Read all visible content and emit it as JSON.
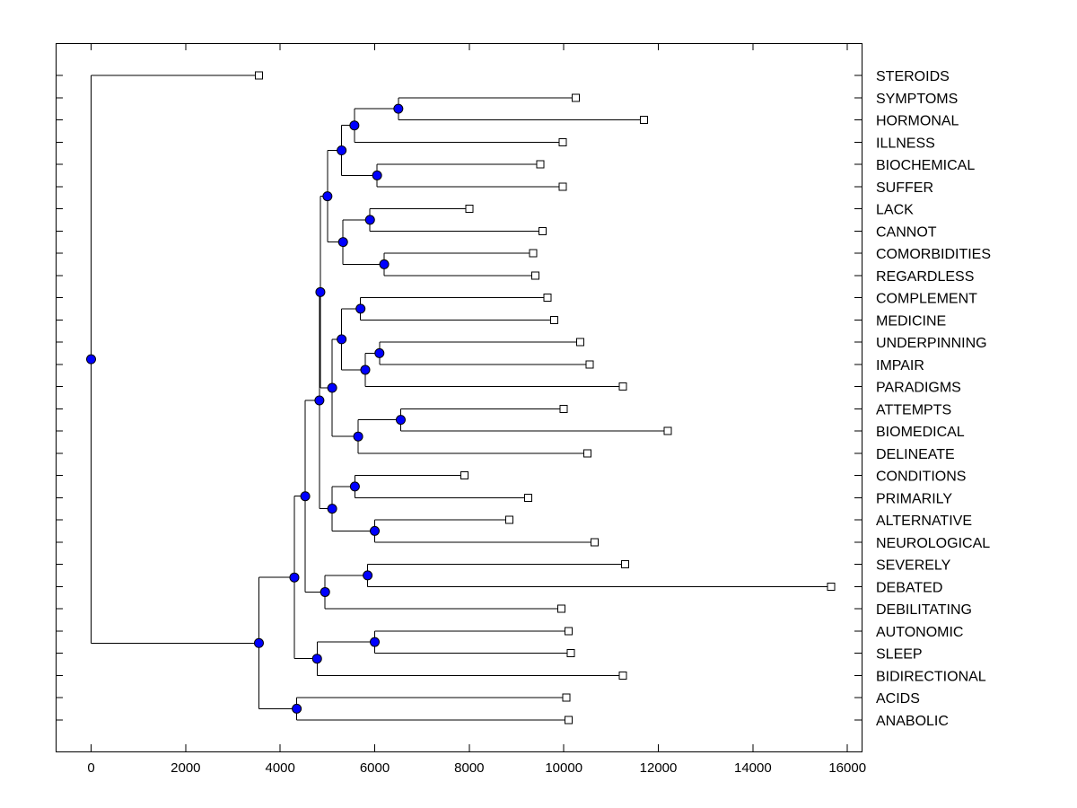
{
  "chart_data": {
    "type": "dendrogram",
    "title": "",
    "xlabel": "",
    "ylabel": "",
    "xlim": [
      -750,
      16300
    ],
    "xticks": [
      0,
      2000,
      4000,
      6000,
      8000,
      10000,
      12000,
      14000,
      16000
    ],
    "xtick_labels": [
      "0",
      "2000",
      "4000",
      "6000",
      "8000",
      "10000",
      "12000",
      "14000",
      "16000"
    ],
    "node_color": "#0000ff",
    "leaves": [
      {
        "label": "STEROIDS",
        "value": 3550
      },
      {
        "label": "SYMPTOMS",
        "value": 10250
      },
      {
        "label": "HORMONAL",
        "value": 11700
      },
      {
        "label": "ILLNESS",
        "value": 9980
      },
      {
        "label": "BIOCHEMICAL",
        "value": 9500
      },
      {
        "label": "SUFFER",
        "value": 9980
      },
      {
        "label": "LACK",
        "value": 8000
      },
      {
        "label": "CANNOT",
        "value": 9550
      },
      {
        "label": "COMORBIDITIES",
        "value": 9350
      },
      {
        "label": "REGARDLESS",
        "value": 9400
      },
      {
        "label": "COMPLEMENT",
        "value": 9650
      },
      {
        "label": "MEDICINE",
        "value": 9800
      },
      {
        "label": "UNDERPINNING",
        "value": 10350
      },
      {
        "label": "IMPAIR",
        "value": 10550
      },
      {
        "label": "PARADIGMS",
        "value": 11250
      },
      {
        "label": "ATTEMPTS",
        "value": 10000
      },
      {
        "label": "BIOMEDICAL",
        "value": 12200
      },
      {
        "label": "DELINEATE",
        "value": 10500
      },
      {
        "label": "CONDITIONS",
        "value": 7900
      },
      {
        "label": "PRIMARILY",
        "value": 9250
      },
      {
        "label": "ALTERNATIVE",
        "value": 8850
      },
      {
        "label": "NEUROLOGICAL",
        "value": 10650
      },
      {
        "label": "SEVERELY",
        "value": 11300
      },
      {
        "label": "DEBATED",
        "value": 15650
      },
      {
        "label": "DEBILITATING",
        "value": 9950
      },
      {
        "label": "AUTONOMIC",
        "value": 10100
      },
      {
        "label": "SLEEP",
        "value": 10150
      },
      {
        "label": "BIDIRECTIONAL",
        "value": 11250
      },
      {
        "label": "ACIDS",
        "value": 10050
      },
      {
        "label": "ANABOLIC",
        "value": 10100
      }
    ],
    "merges": [
      {
        "id": "n1",
        "value": 6500,
        "children": [
          "L1",
          "L2"
        ]
      },
      {
        "id": "n2",
        "value": 5570,
        "children": [
          "n1",
          "L3"
        ]
      },
      {
        "id": "n3",
        "value": 6050,
        "children": [
          "L4",
          "L5"
        ]
      },
      {
        "id": "n4",
        "value": 5300,
        "children": [
          "n2",
          "n3"
        ]
      },
      {
        "id": "n5",
        "value": 5900,
        "children": [
          "L6",
          "L7"
        ]
      },
      {
        "id": "n6",
        "value": 6200,
        "children": [
          "L8",
          "L9"
        ]
      },
      {
        "id": "n7",
        "value": 5330,
        "children": [
          "n5",
          "n6"
        ]
      },
      {
        "id": "n8",
        "value": 5000,
        "children": [
          "n4",
          "n7"
        ]
      },
      {
        "id": "n9",
        "value": 5700,
        "children": [
          "L10",
          "L11"
        ]
      },
      {
        "id": "n10",
        "value": 6100,
        "children": [
          "L12",
          "L13"
        ]
      },
      {
        "id": "n11",
        "value": 5800,
        "children": [
          "n10",
          "L14"
        ]
      },
      {
        "id": "n12",
        "value": 5300,
        "children": [
          "n9",
          "n11"
        ]
      },
      {
        "id": "n13",
        "value": 6550,
        "children": [
          "L15",
          "L16"
        ]
      },
      {
        "id": "n14",
        "value": 5650,
        "children": [
          "n13",
          "L17"
        ]
      },
      {
        "id": "n15",
        "value": 5100,
        "children": [
          "n12",
          "n14"
        ]
      },
      {
        "id": "n16",
        "value": 4850,
        "children": [
          "n8",
          "n15"
        ]
      },
      {
        "id": "n17",
        "value": 5580,
        "children": [
          "L18",
          "L19"
        ]
      },
      {
        "id": "n18",
        "value": 6000,
        "children": [
          "L20",
          "L21"
        ]
      },
      {
        "id": "n19",
        "value": 5100,
        "children": [
          "n17",
          "n18"
        ]
      },
      {
        "id": "n20",
        "value": 4830,
        "children": [
          "n16",
          "n19"
        ]
      },
      {
        "id": "n21",
        "value": 5850,
        "children": [
          "L22",
          "L23"
        ]
      },
      {
        "id": "n22",
        "value": 4950,
        "children": [
          "n21",
          "L24"
        ]
      },
      {
        "id": "n23",
        "value": 4530,
        "children": [
          "n20",
          "n22"
        ]
      },
      {
        "id": "n24",
        "value": 6000,
        "children": [
          "L25",
          "L26"
        ]
      },
      {
        "id": "n25",
        "value": 4780,
        "children": [
          "n24",
          "L27"
        ]
      },
      {
        "id": "n26",
        "value": 4300,
        "children": [
          "n23",
          "n25"
        ]
      },
      {
        "id": "n27",
        "value": 4350,
        "children": [
          "L28",
          "L29"
        ]
      },
      {
        "id": "n28",
        "value": 3550,
        "children": [
          "n26",
          "n27"
        ]
      },
      {
        "id": "n29",
        "value": 0,
        "children": [
          "L0",
          "n28"
        ]
      }
    ]
  }
}
